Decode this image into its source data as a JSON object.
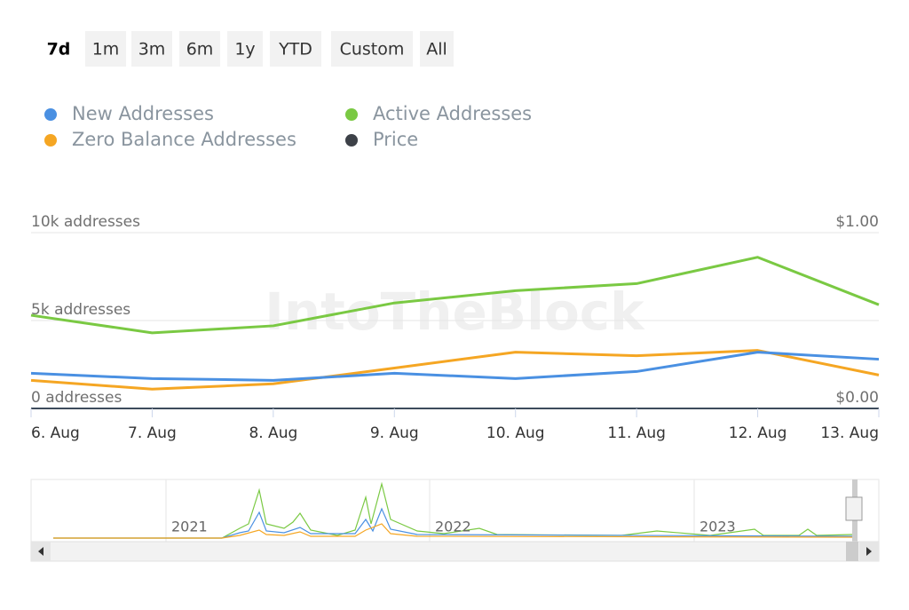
{
  "range_selector": {
    "buttons": [
      "7d",
      "1m",
      "3m",
      "6m",
      "1y",
      "YTD",
      "Custom",
      "All"
    ],
    "selected": 0
  },
  "watermark": "IntoTheBlock",
  "navigator": {
    "labels": [
      "2021",
      "2022",
      "2023"
    ]
  },
  "chart_data": {
    "type": "line",
    "categories": [
      "6. Aug",
      "7. Aug",
      "8. Aug",
      "9. Aug",
      "10. Aug",
      "11. Aug",
      "12. Aug",
      "13. Aug"
    ],
    "series": [
      {
        "name": "New Addresses",
        "color": "#4a90e2",
        "values": [
          2000,
          1700,
          1600,
          2000,
          1700,
          2100,
          3200,
          2800
        ]
      },
      {
        "name": "Active Addresses",
        "color": "#7ac943",
        "values": [
          5300,
          4300,
          4700,
          6000,
          6700,
          7100,
          8600,
          5900
        ]
      },
      {
        "name": "Zero Balance Addresses",
        "color": "#f5a623",
        "values": [
          1600,
          1100,
          1400,
          2300,
          3200,
          3000,
          3300,
          1900
        ]
      },
      {
        "name": "Price",
        "color": "#3d4148",
        "axis": "y2",
        "values": [
          null,
          null,
          null,
          null,
          null,
          null,
          null,
          null
        ]
      }
    ],
    "ylim": [
      0,
      10000
    ],
    "yticks": [
      {
        "value": 0,
        "label": "0 addresses"
      },
      {
        "value": 5000,
        "label": "5k addresses"
      },
      {
        "value": 10000,
        "label": "10k addresses"
      }
    ],
    "y2lim": [
      0,
      1
    ],
    "y2ticks": [
      {
        "value": 0,
        "label": "$0.00"
      },
      {
        "value": 1,
        "label": "$1.00"
      }
    ],
    "grid": true
  }
}
